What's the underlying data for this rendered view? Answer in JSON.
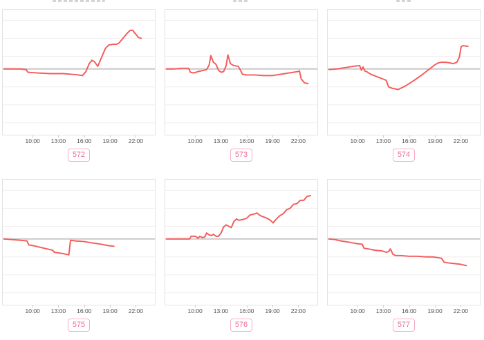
{
  "axis": {
    "tick_labels": [
      "10:00",
      "13:00",
      "16:00",
      "19:00",
      "22:00"
    ],
    "tick_hours": [
      10,
      13,
      16,
      19,
      22
    ],
    "time_domain_hours": [
      6.45,
      24.3
    ]
  },
  "colors": {
    "series_line": "#f45b5b",
    "zero_line": "#c8c8c8",
    "gridline": "#f3ecec",
    "chart_border": "#e2e2e2",
    "axis_label": "#4d4d4d",
    "tick_mark": "#cccccc",
    "badge_border": "#f6aec2",
    "badge_text": "#ee6d96",
    "background": "#ffffff"
  },
  "chart_data": [
    {
      "type": "line",
      "badge": "572",
      "series_color": "#f45b5b",
      "x_ticks": [
        "10:00",
        "13:00",
        "16:00",
        "19:00",
        "22:00"
      ],
      "x_range_hours": [
        6.45,
        24.3
      ],
      "y_units": "relative change (y axis unlabeled, baseline = 0)",
      "baseline": 0,
      "legend": "none",
      "points": [
        [
          6.6,
          0
        ],
        [
          7.5,
          0
        ],
        [
          8.5,
          0
        ],
        [
          9.2,
          -1
        ],
        [
          9.4,
          -5
        ],
        [
          10.5,
          -6
        ],
        [
          12.0,
          -7
        ],
        [
          13.5,
          -7
        ],
        [
          14.5,
          -8
        ],
        [
          15.3,
          -9
        ],
        [
          15.8,
          -10
        ],
        [
          16.2,
          -4
        ],
        [
          16.6,
          8
        ],
        [
          16.9,
          13
        ],
        [
          17.2,
          11
        ],
        [
          17.6,
          4
        ],
        [
          18.0,
          16
        ],
        [
          18.5,
          31
        ],
        [
          18.9,
          36
        ],
        [
          19.4,
          37
        ],
        [
          19.8,
          37
        ],
        [
          20.1,
          39
        ],
        [
          20.5,
          45
        ],
        [
          21.0,
          53
        ],
        [
          21.4,
          58
        ],
        [
          21.7,
          58
        ],
        [
          22.0,
          53
        ],
        [
          22.4,
          47
        ],
        [
          22.7,
          46
        ]
      ]
    },
    {
      "type": "line",
      "badge": "573",
      "series_color": "#f45b5b",
      "x_ticks": [
        "10:00",
        "13:00",
        "16:00",
        "19:00",
        "22:00"
      ],
      "x_range_hours": [
        6.45,
        24.3
      ],
      "y_units": "relative change (y axis unlabeled, baseline = 0)",
      "baseline": 0,
      "legend": "none",
      "points": [
        [
          6.6,
          0
        ],
        [
          7.5,
          0
        ],
        [
          8.3,
          1
        ],
        [
          9.2,
          1
        ],
        [
          9.4,
          -5
        ],
        [
          9.8,
          -6
        ],
        [
          10.3,
          -4
        ],
        [
          11.0,
          -2
        ],
        [
          11.3,
          -1
        ],
        [
          11.6,
          6
        ],
        [
          11.8,
          20
        ],
        [
          12.1,
          10
        ],
        [
          12.4,
          7
        ],
        [
          12.7,
          -2
        ],
        [
          13.0,
          -5
        ],
        [
          13.3,
          -4
        ],
        [
          13.6,
          5
        ],
        [
          13.8,
          21
        ],
        [
          14.1,
          8
        ],
        [
          14.5,
          5
        ],
        [
          15.0,
          4
        ],
        [
          15.2,
          0
        ],
        [
          15.5,
          -8
        ],
        [
          16.0,
          -9
        ],
        [
          17.0,
          -9
        ],
        [
          18.0,
          -10
        ],
        [
          19.0,
          -10
        ],
        [
          19.5,
          -9
        ],
        [
          20.5,
          -7
        ],
        [
          21.5,
          -5
        ],
        [
          22.0,
          -4
        ],
        [
          22.2,
          -3
        ],
        [
          22.4,
          -15
        ],
        [
          22.8,
          -21
        ],
        [
          23.2,
          -22
        ]
      ]
    },
    {
      "type": "line",
      "badge": "574",
      "series_color": "#f45b5b",
      "x_ticks": [
        "10:00",
        "13:00",
        "16:00",
        "19:00",
        "22:00"
      ],
      "x_range_hours": [
        6.45,
        24.3
      ],
      "y_units": "relative change (y axis unlabeled, baseline = 0)",
      "baseline": 0,
      "legend": "none",
      "points": [
        [
          6.6,
          -1
        ],
        [
          7.5,
          0
        ],
        [
          8.5,
          2
        ],
        [
          9.5,
          4
        ],
        [
          10.2,
          5
        ],
        [
          10.4,
          -2
        ],
        [
          10.6,
          3
        ],
        [
          10.8,
          -3
        ],
        [
          11.0,
          -4
        ],
        [
          11.5,
          -8
        ],
        [
          12.5,
          -13
        ],
        [
          13.3,
          -17
        ],
        [
          13.6,
          -27
        ],
        [
          14.0,
          -29
        ],
        [
          14.4,
          -30
        ],
        [
          14.7,
          -31
        ],
        [
          15.5,
          -26
        ],
        [
          16.5,
          -18
        ],
        [
          17.5,
          -9
        ],
        [
          18.3,
          -1
        ],
        [
          19.0,
          6
        ],
        [
          19.4,
          9
        ],
        [
          19.8,
          10
        ],
        [
          20.3,
          10
        ],
        [
          20.8,
          9
        ],
        [
          21.2,
          8
        ],
        [
          21.6,
          10
        ],
        [
          21.9,
          18
        ],
        [
          22.1,
          33
        ],
        [
          22.3,
          35
        ],
        [
          22.9,
          34
        ]
      ]
    },
    {
      "type": "line",
      "badge": "575",
      "series_color": "#f45b5b",
      "x_ticks": [
        "10:00",
        "13:00",
        "16:00",
        "19:00",
        "22:00"
      ],
      "x_range_hours": [
        6.45,
        24.3
      ],
      "y_units": "relative change (y axis unlabeled, baseline = 0)",
      "baseline": 0,
      "legend": "none",
      "points": [
        [
          6.6,
          0
        ],
        [
          7.5,
          -1
        ],
        [
          8.5,
          -2
        ],
        [
          9.3,
          -3
        ],
        [
          9.5,
          -9
        ],
        [
          10.0,
          -10
        ],
        [
          11.0,
          -13
        ],
        [
          12.0,
          -16
        ],
        [
          12.3,
          -17
        ],
        [
          12.5,
          -20
        ],
        [
          13.0,
          -21
        ],
        [
          13.5,
          -22
        ],
        [
          14.2,
          -24
        ],
        [
          14.4,
          -2
        ],
        [
          15.0,
          -3
        ],
        [
          16.0,
          -4
        ],
        [
          17.0,
          -6
        ],
        [
          18.0,
          -8
        ],
        [
          18.8,
          -10
        ],
        [
          19.5,
          -11
        ]
      ]
    },
    {
      "type": "line",
      "badge": "576",
      "series_color": "#f45b5b",
      "x_ticks": [
        "10:00",
        "13:00",
        "16:00",
        "19:00",
        "22:00"
      ],
      "x_range_hours": [
        6.45,
        24.3
      ],
      "y_units": "relative change (y axis unlabeled, baseline = 0)",
      "baseline": 0,
      "legend": "none",
      "points": [
        [
          6.6,
          0
        ],
        [
          7.5,
          0
        ],
        [
          8.5,
          0
        ],
        [
          9.3,
          0
        ],
        [
          9.5,
          4
        ],
        [
          10.0,
          4
        ],
        [
          10.3,
          1
        ],
        [
          10.5,
          4
        ],
        [
          10.8,
          2
        ],
        [
          11.1,
          3
        ],
        [
          11.3,
          9
        ],
        [
          11.6,
          6
        ],
        [
          11.9,
          5
        ],
        [
          12.1,
          7
        ],
        [
          12.4,
          4
        ],
        [
          12.7,
          4
        ],
        [
          13.0,
          9
        ],
        [
          13.3,
          18
        ],
        [
          13.6,
          21
        ],
        [
          13.9,
          19
        ],
        [
          14.2,
          17
        ],
        [
          14.5,
          26
        ],
        [
          14.8,
          30
        ],
        [
          15.1,
          28
        ],
        [
          15.5,
          29
        ],
        [
          16.0,
          31
        ],
        [
          16.4,
          36
        ],
        [
          16.8,
          37
        ],
        [
          17.2,
          39
        ],
        [
          17.6,
          35
        ],
        [
          18.0,
          33
        ],
        [
          18.4,
          31
        ],
        [
          18.8,
          28
        ],
        [
          19.1,
          24
        ],
        [
          19.5,
          30
        ],
        [
          19.9,
          35
        ],
        [
          20.3,
          38
        ],
        [
          20.7,
          44
        ],
        [
          21.1,
          46
        ],
        [
          21.5,
          52
        ],
        [
          21.9,
          53
        ],
        [
          22.3,
          58
        ],
        [
          22.7,
          58
        ],
        [
          23.1,
          64
        ],
        [
          23.5,
          65
        ]
      ]
    },
    {
      "type": "line",
      "badge": "577",
      "series_color": "#f45b5b",
      "x_ticks": [
        "10:00",
        "13:00",
        "16:00",
        "19:00",
        "22:00"
      ],
      "x_range_hours": [
        6.45,
        24.3
      ],
      "y_units": "relative change (y axis unlabeled, baseline = 0)",
      "baseline": 0,
      "legend": "none",
      "points": [
        [
          6.6,
          0
        ],
        [
          7.3,
          -1
        ],
        [
          8.0,
          -3
        ],
        [
          9.0,
          -5
        ],
        [
          9.8,
          -7
        ],
        [
          10.5,
          -8
        ],
        [
          10.7,
          -14
        ],
        [
          11.2,
          -15
        ],
        [
          12.0,
          -17
        ],
        [
          12.8,
          -18
        ],
        [
          13.3,
          -20
        ],
        [
          13.6,
          -19
        ],
        [
          13.8,
          -15
        ],
        [
          14.1,
          -23
        ],
        [
          14.4,
          -25
        ],
        [
          15.0,
          -25
        ],
        [
          16.0,
          -26
        ],
        [
          17.0,
          -26
        ],
        [
          18.0,
          -27
        ],
        [
          18.8,
          -27
        ],
        [
          19.3,
          -28
        ],
        [
          19.8,
          -29
        ],
        [
          20.1,
          -35
        ],
        [
          20.6,
          -36
        ],
        [
          21.3,
          -37
        ],
        [
          22.0,
          -38
        ],
        [
          22.7,
          -40
        ]
      ]
    }
  ]
}
